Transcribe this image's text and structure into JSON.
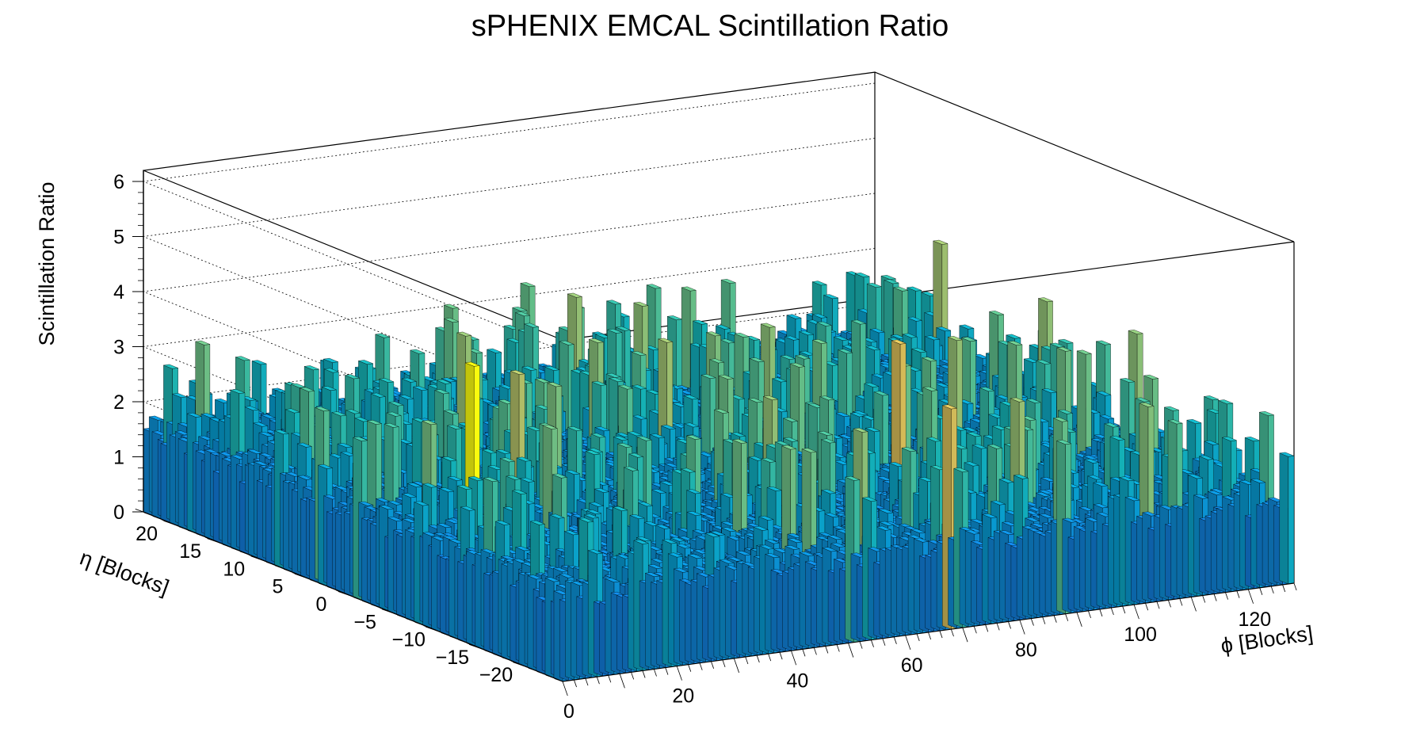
{
  "chart_data": {
    "type": "lego3d",
    "title": "sPHENIX EMCAL Scintillation Ratio",
    "xlabel": "ϕ [Blocks]",
    "ylabel": "η [Blocks]",
    "zlabel": "Scintillation Ratio",
    "xlim": [
      0,
      128
    ],
    "ylim": [
      -24,
      24
    ],
    "zlim": [
      0,
      6.2
    ],
    "x_ticks": [
      "0",
      "20",
      "40",
      "60",
      "80",
      "100",
      "120"
    ],
    "y_ticks": [
      "−20",
      "−15",
      "−10",
      "−5",
      "0",
      "5",
      "10",
      "15",
      "20"
    ],
    "z_ticks": [
      "0",
      "1",
      "2",
      "3",
      "4",
      "5",
      "6"
    ],
    "grid": "z-only (dotted on back walls)",
    "colormap": "kBird (blue to yellow)",
    "bins": {
      "phi": 128,
      "eta": 48
    },
    "typical_value_range": [
      0.9,
      2.2
    ],
    "peaks": [
      {
        "phi": 12,
        "eta": -6,
        "value": 4.4
      },
      {
        "phi": 68,
        "eta": -24,
        "value": 4.0
      },
      {
        "phi": 26,
        "eta": -2,
        "value": 3.8
      },
      {
        "phi": 35,
        "eta": 10,
        "value": 3.6
      },
      {
        "phi": 52,
        "eta": 6,
        "value": 3.5
      },
      {
        "phi": 2,
        "eta": 22,
        "value": 2.7
      },
      {
        "phi": 45,
        "eta": 18,
        "value": 3.2
      }
    ]
  }
}
